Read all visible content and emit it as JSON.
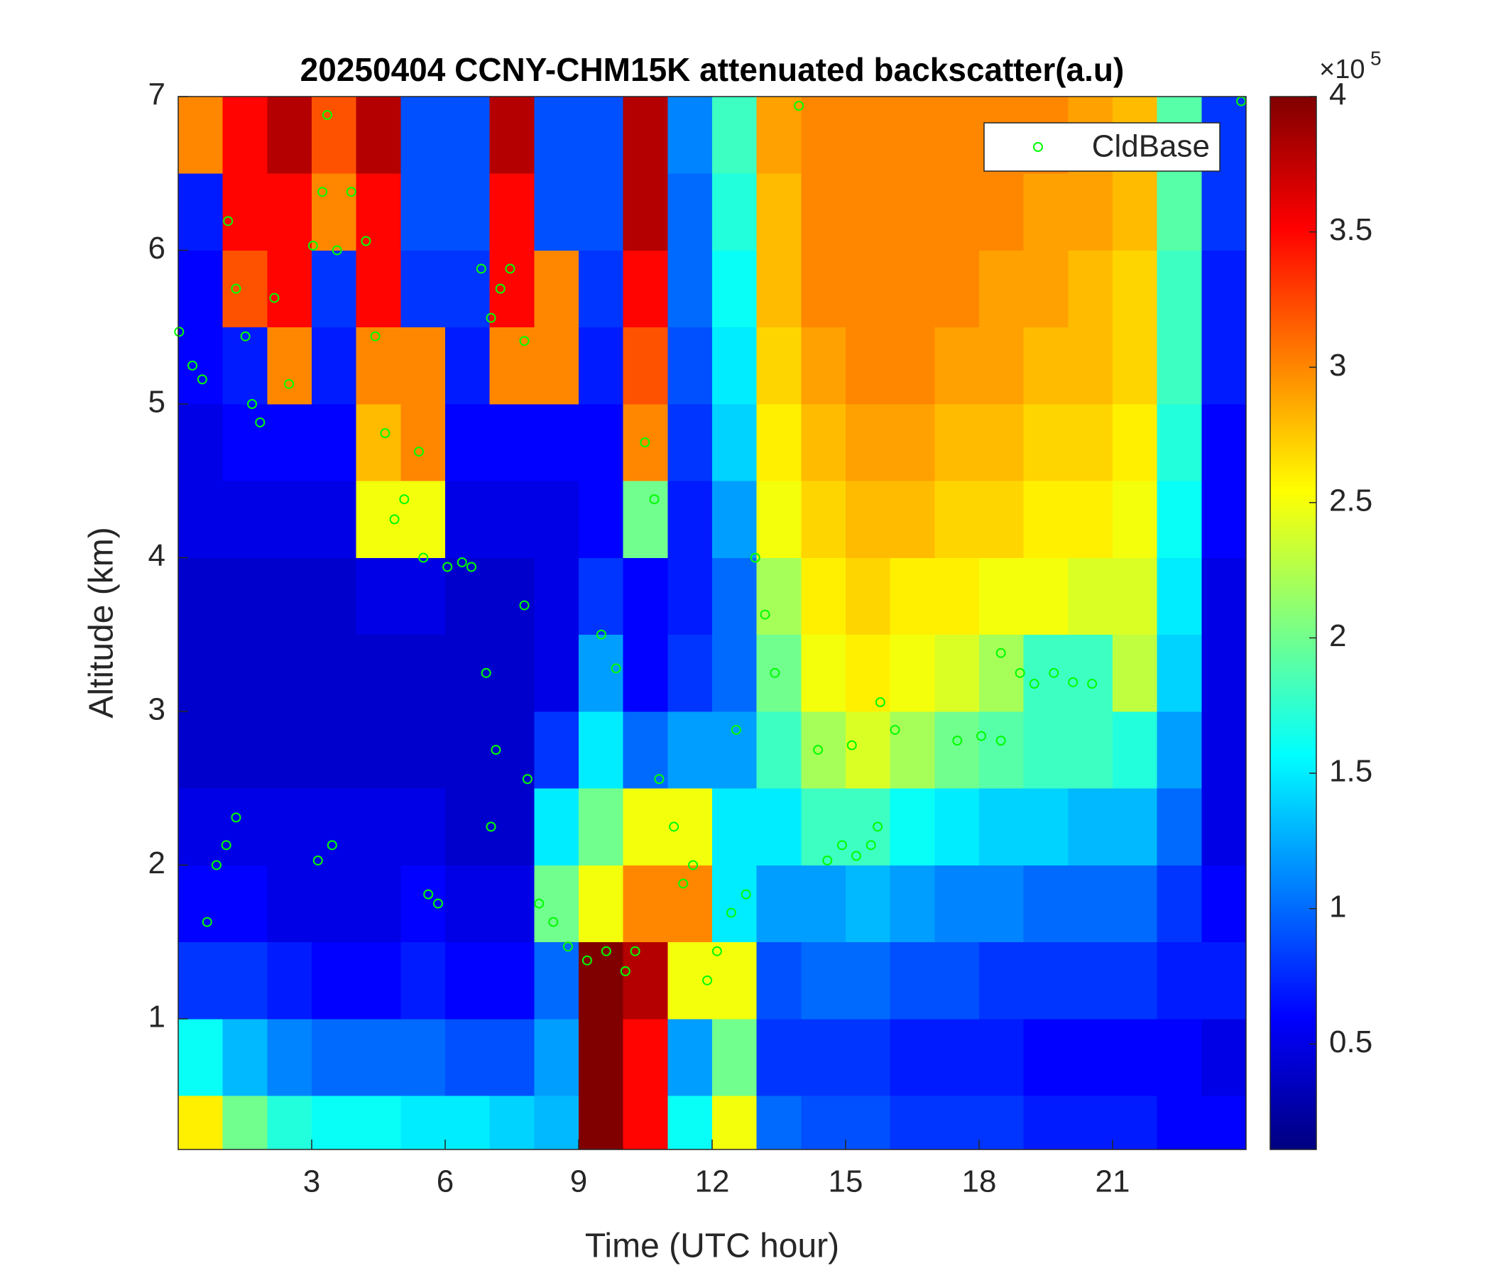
{
  "chart_data": {
    "type": "heatmap",
    "title": "20250404 CCNY-CHM15K attenuated backscatter(a.u)",
    "xlabel": "Time (UTC hour)",
    "ylabel": "Altitude (km)",
    "xlim": [
      0,
      24
    ],
    "ylim": [
      0.15,
      7
    ],
    "xticks": [
      3,
      6,
      9,
      12,
      15,
      18,
      21
    ],
    "yticks": [
      1,
      2,
      3,
      4,
      5,
      6,
      7
    ],
    "colormap": "jet",
    "clim": [
      0.11,
      4
    ],
    "cticks": [
      0.5,
      1,
      1.5,
      2,
      2.5,
      3,
      3.5,
      4
    ],
    "colorbar_multiplier": "×10",
    "colorbar_exponent": "5",
    "x_edges": [
      0,
      1,
      2,
      3,
      4,
      5,
      6,
      7,
      8,
      9,
      10,
      11,
      12,
      13,
      14,
      15,
      16,
      17,
      18,
      19,
      20,
      21,
      22,
      23,
      24
    ],
    "y_edges": [
      0.15,
      0.5,
      1,
      1.5,
      2,
      2.5,
      3,
      3.5,
      4,
      4.5,
      5,
      5.5,
      6,
      6.5,
      7
    ],
    "z": [
      [
        2.6,
        2.0,
        1.7,
        1.6,
        1.6,
        1.5,
        1.5,
        1.4,
        1.3,
        4,
        3.5,
        1.6,
        2.5,
        1.0,
        0.9,
        0.9,
        0.8,
        0.8,
        0.8,
        0.7,
        0.7,
        0.7,
        0.6,
        0.6
      ],
      [
        1.6,
        1.3,
        1.1,
        1.0,
        1.0,
        1.0,
        0.9,
        0.9,
        1.2,
        4,
        3.5,
        1.2,
        2.0,
        0.8,
        0.8,
        0.8,
        0.7,
        0.7,
        0.7,
        0.6,
        0.6,
        0.6,
        0.6,
        0.5
      ],
      [
        0.8,
        0.8,
        0.7,
        0.6,
        0.6,
        0.7,
        0.6,
        0.6,
        1.0,
        4,
        3.8,
        2.5,
        2.5,
        0.9,
        1.0,
        1.0,
        0.9,
        0.9,
        0.8,
        0.8,
        0.8,
        0.8,
        0.7,
        0.7
      ],
      [
        0.6,
        0.6,
        0.5,
        0.5,
        0.5,
        0.6,
        0.5,
        0.5,
        2.0,
        2.5,
        3.0,
        3.0,
        1.5,
        1.2,
        1.2,
        1.3,
        1.2,
        1.1,
        1.1,
        1.0,
        1.0,
        1.0,
        0.8,
        0.6
      ],
      [
        0.5,
        0.5,
        0.5,
        0.5,
        0.5,
        0.5,
        0.4,
        0.4,
        1.5,
        2.0,
        2.5,
        2.5,
        1.5,
        1.5,
        1.8,
        1.8,
        1.6,
        1.5,
        1.4,
        1.4,
        1.3,
        1.3,
        1.0,
        0.5
      ],
      [
        0.4,
        0.4,
        0.4,
        0.4,
        0.4,
        0.4,
        0.4,
        0.4,
        0.8,
        1.5,
        1.0,
        1.2,
        1.2,
        1.8,
        2.2,
        2.4,
        2.2,
        2.0,
        1.9,
        1.8,
        1.8,
        1.7,
        1.2,
        0.5
      ],
      [
        0.4,
        0.4,
        0.4,
        0.4,
        0.4,
        0.4,
        0.4,
        0.4,
        0.5,
        1.2,
        0.6,
        0.8,
        1.0,
        2.0,
        2.5,
        2.6,
        2.5,
        2.4,
        2.2,
        1.8,
        1.8,
        2.3,
        1.4,
        0.5
      ],
      [
        0.4,
        0.4,
        0.4,
        0.4,
        0.5,
        0.5,
        0.4,
        0.4,
        0.5,
        0.8,
        0.6,
        0.7,
        1.0,
        2.2,
        2.6,
        2.7,
        2.6,
        2.6,
        2.5,
        2.5,
        2.4,
        2.4,
        1.5,
        0.5
      ],
      [
        0.5,
        0.5,
        0.5,
        0.5,
        2.5,
        2.5,
        0.5,
        0.5,
        0.5,
        0.6,
        2.0,
        0.7,
        1.2,
        2.5,
        2.7,
        2.8,
        2.8,
        2.7,
        2.7,
        2.6,
        2.6,
        2.5,
        1.6,
        0.6
      ],
      [
        0.5,
        0.6,
        0.6,
        0.6,
        2.8,
        3.0,
        0.6,
        0.6,
        0.6,
        0.6,
        3.0,
        0.8,
        1.4,
        2.6,
        2.8,
        2.9,
        2.9,
        2.8,
        2.8,
        2.7,
        2.7,
        2.6,
        1.7,
        0.6
      ],
      [
        0.6,
        0.7,
        3.0,
        0.7,
        3.0,
        3.0,
        0.7,
        3.0,
        3.0,
        0.7,
        3.2,
        0.9,
        1.5,
        2.7,
        2.9,
        3.0,
        3.0,
        2.9,
        2.9,
        2.8,
        2.8,
        2.7,
        1.8,
        0.7
      ],
      [
        0.6,
        3.2,
        3.5,
        0.8,
        3.5,
        0.8,
        0.8,
        3.5,
        3.0,
        0.8,
        3.5,
        1.0,
        1.6,
        2.8,
        3.0,
        3.0,
        3.0,
        3.0,
        2.9,
        2.9,
        2.8,
        2.7,
        1.8,
        0.7
      ],
      [
        0.7,
        3.5,
        3.5,
        3.0,
        3.5,
        0.9,
        0.9,
        3.5,
        0.9,
        0.9,
        3.8,
        1.0,
        1.7,
        2.8,
        3.0,
        3.0,
        3.0,
        3.0,
        3.0,
        2.9,
        2.9,
        2.8,
        1.9,
        0.8
      ],
      [
        3.0,
        3.5,
        3.8,
        3.2,
        3.8,
        0.9,
        0.9,
        3.8,
        0.9,
        0.9,
        3.8,
        1.1,
        1.8,
        2.9,
        3.0,
        3.0,
        3.0,
        3.0,
        3.0,
        3.0,
        2.9,
        2.8,
        1.9,
        0.8
      ]
    ],
    "legend": "upper right",
    "overlay": {
      "type": "scatter",
      "name": "CldBase",
      "color": "#00ff00",
      "x": [
        0.02,
        0.32,
        0.54,
        0.65,
        0.86,
        1.08,
        1.12,
        1.3,
        1.51,
        1.66,
        1.84,
        2.16,
        2.49,
        1.3,
        3.03,
        3.24,
        3.35,
        3.57,
        3.14,
        3.46,
        3.89,
        4.22,
        4.43,
        4.65,
        4.86,
        5.08,
        5.41,
        5.51,
        5.62,
        5.84,
        6.05,
        6.38,
        6.59,
        6.81,
        7.03,
        7.24,
        7.46,
        7.78,
        6.92,
        7.03,
        7.14,
        7.78,
        7.85,
        8.11,
        8.43,
        8.76,
        9.19,
        9.62,
        10.05,
        10.27,
        9.51,
        9.84,
        10.49,
        10.7,
        10.81,
        11.14,
        11.35,
        11.57,
        11.89,
        12.11,
        12.43,
        12.76,
        12.54,
        12.97,
        13.19,
        13.41,
        13.95,
        14.38,
        14.59,
        14.92,
        15.24,
        15.57,
        15.72,
        15.14,
        15.78,
        16.11,
        17.51,
        18.05,
        18.49,
        18.49,
        18.92,
        19.24,
        19.68,
        20.11,
        20.54,
        23.89
      ],
      "y": [
        5.47,
        5.25,
        5.16,
        1.63,
        2.0,
        2.13,
        6.19,
        5.75,
        5.44,
        5.0,
        4.88,
        5.69,
        5.13,
        2.31,
        6.03,
        6.38,
        6.88,
        6.0,
        2.03,
        2.13,
        6.38,
        6.06,
        5.44,
        4.81,
        4.25,
        4.38,
        4.69,
        4.0,
        1.81,
        1.75,
        3.94,
        3.97,
        3.94,
        5.88,
        5.56,
        5.75,
        5.88,
        5.41,
        3.25,
        2.25,
        2.75,
        3.69,
        2.56,
        1.75,
        1.63,
        1.47,
        1.38,
        1.44,
        1.31,
        1.44,
        3.5,
        3.28,
        4.75,
        4.38,
        2.56,
        2.25,
        1.88,
        2.0,
        1.25,
        1.44,
        1.69,
        1.81,
        2.88,
        4.0,
        3.63,
        3.25,
        6.94,
        2.75,
        2.03,
        2.13,
        2.06,
        2.13,
        2.25,
        2.78,
        3.06,
        2.88,
        2.81,
        2.84,
        2.81,
        3.38,
        3.25,
        3.18,
        3.25,
        3.19,
        3.18,
        6.97
      ]
    }
  }
}
